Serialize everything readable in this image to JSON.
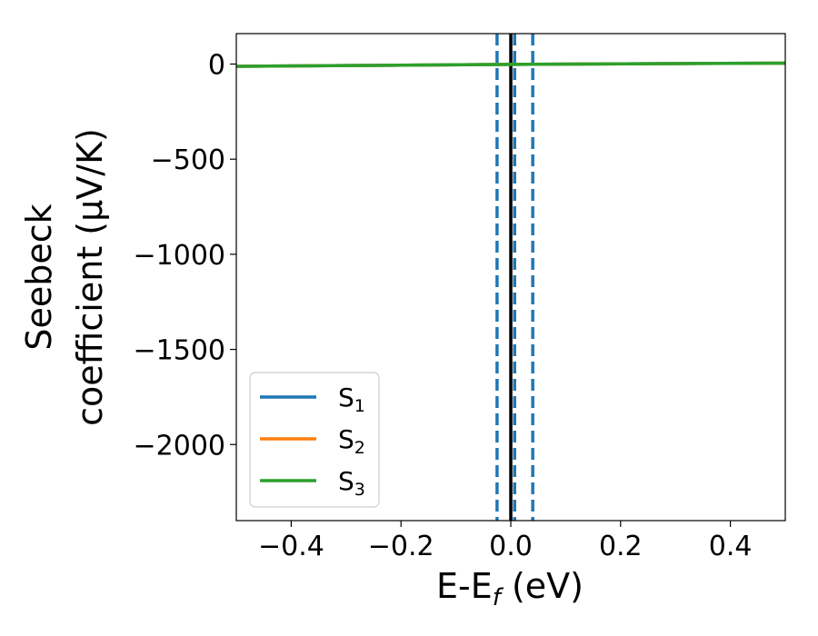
{
  "chart_data": {
    "type": "line",
    "xlabel_main": "E-E",
    "xlabel_sub": "f",
    "xlabel_unit": " (eV)",
    "ylabel_line1": "Seebeck",
    "ylabel_line2": "coefficient  (μV/K)",
    "xlim": [
      -0.5,
      0.5
    ],
    "ylim": [
      -2400,
      160
    ],
    "xticks": [
      -0.4,
      -0.2,
      0.0,
      0.2,
      0.4
    ],
    "xtick_labels": [
      "−0.4",
      "−0.2",
      "0.0",
      "0.2",
      "0.4"
    ],
    "yticks": [
      0,
      -500,
      -1000,
      -1500,
      -2000
    ],
    "ytick_labels": [
      "0",
      "−500",
      "−1000",
      "−1500",
      "−2000"
    ],
    "grid": false,
    "legend_position": "lower-left",
    "series": [
      {
        "name": "S",
        "sub": "1",
        "color": "#1f77b4",
        "x": [
          -0.5,
          -0.25,
          0.0,
          0.25,
          0.5
        ],
        "values": [
          -12,
          -7,
          -2,
          2,
          5
        ]
      },
      {
        "name": "S",
        "sub": "2",
        "color": "#ff7f0e",
        "x": [
          -0.5,
          -0.25,
          0.0,
          0.25,
          0.5
        ],
        "values": [
          -12,
          -7,
          -2,
          2,
          5
        ]
      },
      {
        "name": "S",
        "sub": "3",
        "color": "#2ca02c",
        "x": [
          -0.5,
          -0.25,
          0.0,
          0.25,
          0.5
        ],
        "values": [
          -12,
          -7,
          -2,
          2,
          5
        ]
      }
    ],
    "vlines": [
      {
        "x": 0.0,
        "color": "#000000",
        "style": "solid"
      },
      {
        "x": -0.025,
        "color": "#1f77b4",
        "style": "dashed"
      },
      {
        "x": 0.007,
        "color": "#1f77b4",
        "style": "dashed"
      },
      {
        "x": 0.04,
        "color": "#1f77b4",
        "style": "dashed"
      }
    ]
  }
}
